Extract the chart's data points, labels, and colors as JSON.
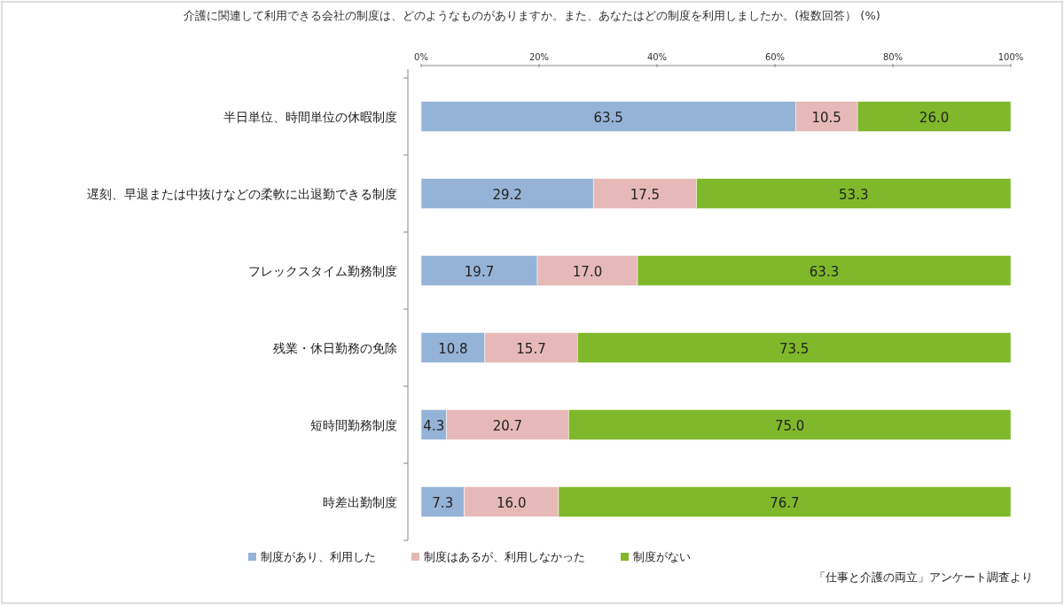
{
  "chart_data": {
    "type": "bar",
    "title": "介護に関連して利用できる会社の制度は、どのようなものがありますか。また、あなたはどの制度を利用しましたか。(複数回答） (%)",
    "orientation": "horizontal",
    "stacked": true,
    "categories": [
      "半日単位、時間単位の休暇制度",
      "遅刻、早退または中抜けなどの柔軟に出退勤できる制度",
      "フレックスタイム勤務制度",
      "残業・休日勤務の免除",
      "短時間勤務制度",
      "時差出勤制度"
    ],
    "series": [
      {
        "name": "制度があり、利用した",
        "color": "#95b3d7",
        "values": [
          63.5,
          29.2,
          19.7,
          10.8,
          4.3,
          7.3
        ],
        "value_labels": [
          "63.5",
          "29.2",
          "19.7",
          "10.8",
          "4.3",
          "7.3"
        ]
      },
      {
        "name": "制度はあるが、利用しなかった",
        "color": "#e6b9b8",
        "values": [
          10.5,
          17.5,
          17.0,
          15.7,
          20.7,
          16.0
        ],
        "value_labels": [
          "10.5",
          "17.5",
          "17.0",
          "15.7",
          "20.7",
          "16.0"
        ]
      },
      {
        "name": "制度がない",
        "color": "#7fb82a",
        "values": [
          26.0,
          53.3,
          63.3,
          73.5,
          75.0,
          76.7
        ],
        "value_labels": [
          "26.0",
          "53.3",
          "63.3",
          "73.5",
          "75.0",
          "76.7"
        ]
      }
    ],
    "xlim": [
      0,
      100
    ],
    "xticks": [
      {
        "value": 0,
        "label": "0%"
      },
      {
        "value": 20,
        "label": "20%"
      },
      {
        "value": 40,
        "label": "40%"
      },
      {
        "value": 60,
        "label": "60%"
      },
      {
        "value": 80,
        "label": "80%"
      },
      {
        "value": 100,
        "label": "100%"
      }
    ],
    "legend": "bottom",
    "grid": false,
    "annotations": [
      "「仕事と介護の両立」アンケート調査より"
    ]
  }
}
